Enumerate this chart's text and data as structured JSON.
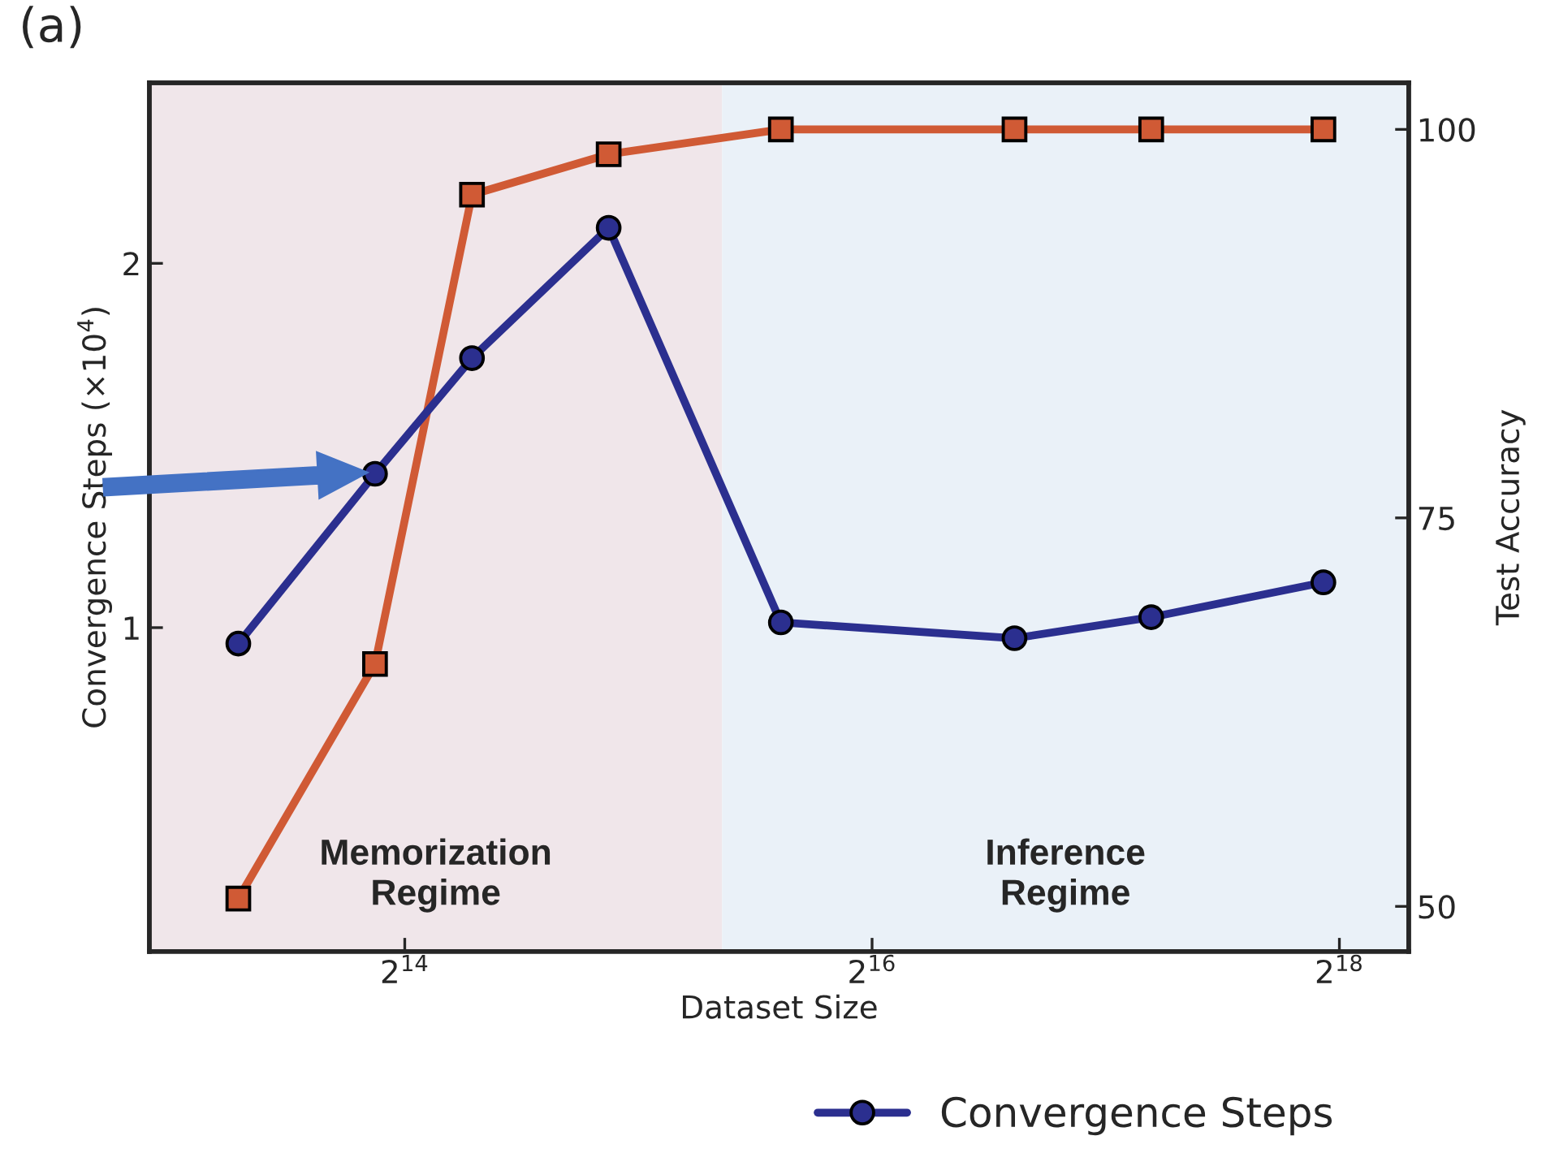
{
  "chart_data": {
    "type": "line",
    "title": "(a)",
    "xlabel": "Dataset Size",
    "ylabel": "Convergence Steps (×10$^{4}$)",
    "y2label": "Test Accuracy",
    "x": [
      10000,
      15000,
      20000,
      30000,
      50000,
      100000,
      150000,
      250000
    ],
    "series": [
      {
        "name": "Convergence Steps",
        "color": "#2b2f8f",
        "marker": "circle",
        "values": [
          0.97,
          1.34,
          1.67,
          2.14,
          1.01,
          0.98,
          1.02,
          1.09
        ]
      },
      {
        "color": "#d05a35",
        "marker": "square",
        "axis": "y2",
        "values": [
          50.5,
          65.6,
          95.8,
          98.4,
          100,
          100,
          100,
          100
        ]
      }
    ],
    "log": "xy",
    "xlim": [
      7680,
      322000
    ],
    "xticks": [
      {
        "value": 16384,
        "label": "2$^{14}$"
      },
      {
        "value": 65536,
        "label": "2$^{16}$"
      },
      {
        "value": 262144,
        "label": "2$^{18}$"
      }
    ],
    "ylim": [
      0.54,
      2.82
    ],
    "yticks": [
      1,
      2
    ],
    "y2lim": [
      47.1,
      103.0
    ],
    "y2ticks": [
      50,
      75,
      100
    ],
    "bands": [
      {
        "axis": "x",
        "from": 7680,
        "to": 42000,
        "label": "Memorization\nRegime",
        "color": "#f0e6ea"
      },
      {
        "axis": "x",
        "from": 42000,
        "to": 322000,
        "label": "Inference\nRegime",
        "color": "#eaf1f8"
      }
    ],
    "grid": false,
    "legend": "bottom",
    "line_style": "solid"
  }
}
